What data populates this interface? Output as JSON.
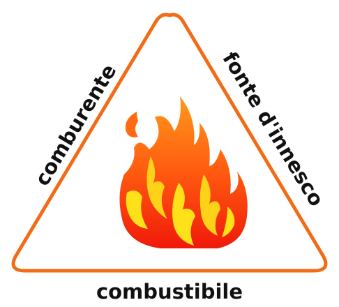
{
  "labels": {
    "left": "comburente",
    "right": "fonte d'innesco",
    "bottom": "combustibile"
  }
}
